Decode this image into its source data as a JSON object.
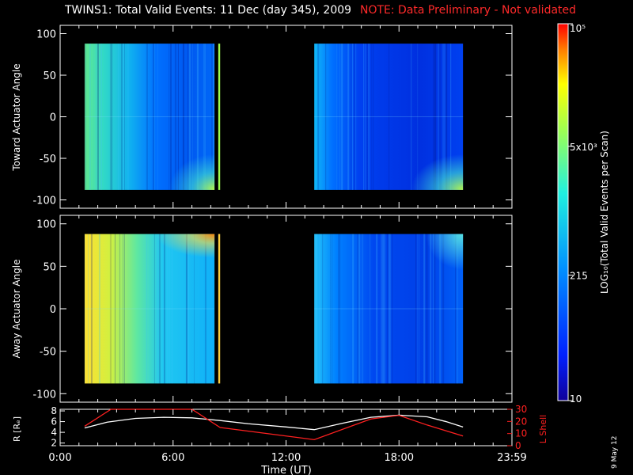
{
  "header": {
    "title": "TWINS1: Total Valid Events: 11 Dec (day 345), 2009",
    "note": "NOTE: Data Preliminary - Not validated"
  },
  "footer": {
    "datestamp": "9 May 12"
  },
  "colors": {
    "note": "#ff2a2a",
    "background": "#000000",
    "axes": "#ffffff",
    "lshell": "#ff2020",
    "radius": "#ffffff"
  },
  "chart_data": [
    {
      "type": "heatmap",
      "name": "toward",
      "ylabel": "Toward Actuator Angle",
      "xlim": [
        0,
        24
      ],
      "ylim": [
        -110,
        110
      ],
      "yticks": [
        100,
        50,
        0,
        -50,
        -100
      ],
      "data_intervals_hours": [
        [
          1.3,
          8.2
        ],
        [
          8.4,
          8.5
        ],
        [
          13.5,
          21.4
        ]
      ],
      "angle_range": [
        -88,
        88
      ]
    },
    {
      "type": "heatmap",
      "name": "away",
      "ylabel": "Away Actuator Angle",
      "xlim": [
        0,
        24
      ],
      "ylim": [
        -110,
        110
      ],
      "yticks": [
        100,
        50,
        0,
        -50,
        -100
      ],
      "data_intervals_hours": [
        [
          1.3,
          8.2
        ],
        [
          8.4,
          8.5
        ],
        [
          13.5,
          21.4
        ]
      ],
      "angle_range": [
        -88,
        88
      ]
    },
    {
      "type": "line",
      "name": "orbit",
      "xlim": [
        0,
        24
      ],
      "xlabel": "Time (UT)",
      "xticks": [
        0,
        6,
        12,
        18,
        24
      ],
      "xtick_labels": [
        "0:00",
        "6:00",
        "12:00",
        "18:00",
        "23:59"
      ],
      "left_axis": {
        "label": "R [Rₑ]",
        "ylim": [
          1.5,
          8.3
        ],
        "ticks": [
          2,
          4,
          6,
          8
        ]
      },
      "right_axis": {
        "label": "L Shell",
        "ylim": [
          0,
          30
        ],
        "ticks": [
          0,
          10,
          20,
          30
        ]
      },
      "series": [
        {
          "name": "R [Rₑ]",
          "axis": "left",
          "x": [
            1.3,
            2.5,
            4,
            5.5,
            7,
            8.5,
            10,
            12,
            13.5,
            15,
            16.5,
            18,
            19.5,
            20.5,
            21.4
          ],
          "y": [
            4.8,
            5.9,
            6.6,
            6.8,
            6.7,
            6.2,
            5.6,
            5,
            4.5,
            5.7,
            6.8,
            7.2,
            6.9,
            6,
            5
          ]
        },
        {
          "name": "L Shell",
          "axis": "right",
          "x": [
            1.3,
            2.7,
            7,
            8.5,
            13.5,
            16.5,
            18,
            19.5,
            21.4
          ],
          "y": [
            16,
            30,
            30,
            15,
            5,
            22,
            25,
            17,
            8
          ]
        }
      ]
    },
    {
      "type": "colorbar",
      "label": "LOG₁₀(Total Valid Events per Scan)",
      "ticks": [
        {
          "value": 100000,
          "label": "10⁵"
        },
        {
          "value": 5000,
          "label": "5x10³"
        },
        {
          "value": 215,
          "label": "215"
        },
        {
          "value": 10,
          "label": "10"
        }
      ],
      "range": [
        10,
        100000
      ],
      "colormap": [
        "#10009a",
        "#0030ff",
        "#00a0ff",
        "#20f0e0",
        "#a0ff50",
        "#ffff00",
        "#ff8000",
        "#ff0000"
      ]
    }
  ]
}
